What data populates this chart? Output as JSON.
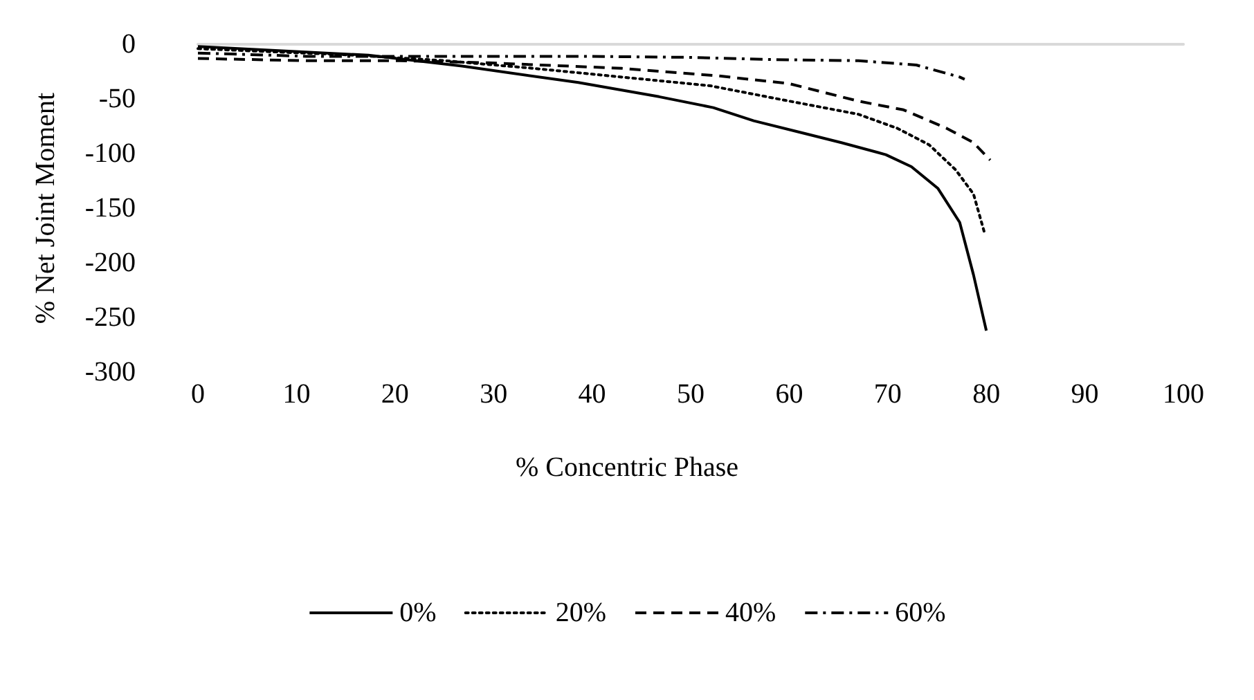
{
  "chart_data": {
    "type": "line",
    "xlabel": "% Concentric Phase",
    "ylabel": "% Net Joint Moment",
    "xlim": [
      0,
      100
    ],
    "xticks": [
      0,
      10,
      20,
      30,
      40,
      50,
      60,
      70,
      80,
      90,
      100
    ],
    "ylim": [
      -300,
      0
    ],
    "yticks": [
      -300,
      -250,
      -200,
      -150,
      -100,
      -50,
      0
    ],
    "grid": false,
    "legend": "bottom",
    "marker": "none",
    "series": [
      {
        "name": "0%",
        "color": "#000000",
        "line_style": "solid",
        "x": [
          0,
          17.3,
          26.8,
          38.6,
          46.8,
          52.3,
          56.4,
          61.3,
          65.3,
          69.8,
          72.4,
          75.1,
          77.3,
          78.7,
          80
        ],
        "values": [
          -2,
          -10,
          -20,
          -35,
          -48,
          -58,
          -70,
          -81,
          -90,
          -101,
          -112,
          -132,
          -163,
          -211,
          -262
        ]
      },
      {
        "name": "20%",
        "color": "#000000",
        "line_style": "dotted",
        "x": [
          0,
          15.9,
          25,
          34,
          43,
          52,
          60,
          67,
          71,
          74.2,
          76.9,
          78.7,
          79.8
        ],
        "values": [
          -4,
          -10,
          -15,
          -22,
          -30,
          -38,
          -52,
          -64,
          -77,
          -92,
          -115,
          -137,
          -172
        ]
      },
      {
        "name": "40%",
        "color": "#000000",
        "line_style": "dashed",
        "x": [
          0,
          11,
          20.5,
          29.5,
          43,
          52.9,
          60,
          67,
          71.6,
          76,
          78.7,
          80.4
        ],
        "values": [
          -13,
          -15,
          -15,
          -17,
          -22,
          -29,
          -36,
          -52,
          -60,
          -77,
          -90,
          -106
        ]
      },
      {
        "name": "60%",
        "color": "#000000",
        "line_style": "dashdot",
        "x": [
          0,
          11,
          25,
          38.6,
          50,
          58.2,
          67,
          72.9,
          77.3,
          77.8
        ],
        "values": [
          -8,
          -11,
          -11,
          -11,
          -12,
          -14,
          -15,
          -19,
          -30,
          -32
        ]
      }
    ]
  }
}
